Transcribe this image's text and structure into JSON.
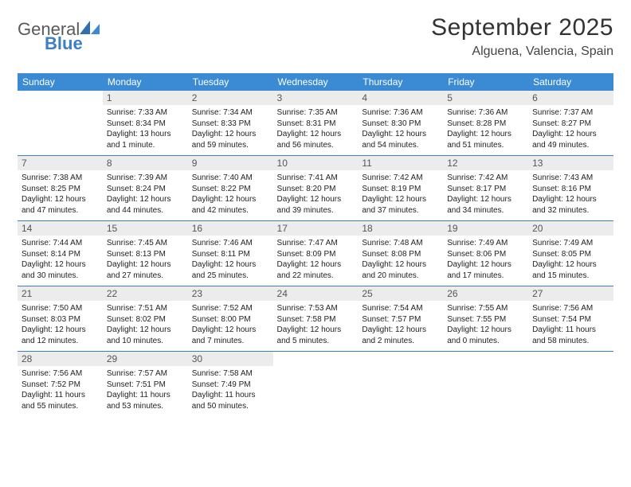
{
  "logo": {
    "text1": "General",
    "text2": "Blue"
  },
  "title": "September 2025",
  "location": "Alguena, Valencia, Spain",
  "colors": {
    "header_bg": "#3b8bd4",
    "header_text": "#ffffff",
    "daynum_bg": "#ececec",
    "daynum_text": "#555555",
    "row_divider": "#3b7fc4",
    "body_text": "#222222",
    "title_text": "#333333",
    "logo_gray": "#5a5a5a",
    "logo_blue": "#3b7fc4",
    "page_bg": "#ffffff"
  },
  "fonts": {
    "title_pt": 30,
    "location_pt": 16,
    "header_pt": 12,
    "daynum_pt": 12,
    "body_pt": 10,
    "logo_pt": 22
  },
  "dayNames": [
    "Sunday",
    "Monday",
    "Tuesday",
    "Wednesday",
    "Thursday",
    "Friday",
    "Saturday"
  ],
  "weeks": [
    [
      null,
      {
        "n": "1",
        "sr": "Sunrise: 7:33 AM",
        "ss": "Sunset: 8:34 PM",
        "dl1": "Daylight: 13 hours",
        "dl2": "and 1 minute."
      },
      {
        "n": "2",
        "sr": "Sunrise: 7:34 AM",
        "ss": "Sunset: 8:33 PM",
        "dl1": "Daylight: 12 hours",
        "dl2": "and 59 minutes."
      },
      {
        "n": "3",
        "sr": "Sunrise: 7:35 AM",
        "ss": "Sunset: 8:31 PM",
        "dl1": "Daylight: 12 hours",
        "dl2": "and 56 minutes."
      },
      {
        "n": "4",
        "sr": "Sunrise: 7:36 AM",
        "ss": "Sunset: 8:30 PM",
        "dl1": "Daylight: 12 hours",
        "dl2": "and 54 minutes."
      },
      {
        "n": "5",
        "sr": "Sunrise: 7:36 AM",
        "ss": "Sunset: 8:28 PM",
        "dl1": "Daylight: 12 hours",
        "dl2": "and 51 minutes."
      },
      {
        "n": "6",
        "sr": "Sunrise: 7:37 AM",
        "ss": "Sunset: 8:27 PM",
        "dl1": "Daylight: 12 hours",
        "dl2": "and 49 minutes."
      }
    ],
    [
      {
        "n": "7",
        "sr": "Sunrise: 7:38 AM",
        "ss": "Sunset: 8:25 PM",
        "dl1": "Daylight: 12 hours",
        "dl2": "and 47 minutes."
      },
      {
        "n": "8",
        "sr": "Sunrise: 7:39 AM",
        "ss": "Sunset: 8:24 PM",
        "dl1": "Daylight: 12 hours",
        "dl2": "and 44 minutes."
      },
      {
        "n": "9",
        "sr": "Sunrise: 7:40 AM",
        "ss": "Sunset: 8:22 PM",
        "dl1": "Daylight: 12 hours",
        "dl2": "and 42 minutes."
      },
      {
        "n": "10",
        "sr": "Sunrise: 7:41 AM",
        "ss": "Sunset: 8:20 PM",
        "dl1": "Daylight: 12 hours",
        "dl2": "and 39 minutes."
      },
      {
        "n": "11",
        "sr": "Sunrise: 7:42 AM",
        "ss": "Sunset: 8:19 PM",
        "dl1": "Daylight: 12 hours",
        "dl2": "and 37 minutes."
      },
      {
        "n": "12",
        "sr": "Sunrise: 7:42 AM",
        "ss": "Sunset: 8:17 PM",
        "dl1": "Daylight: 12 hours",
        "dl2": "and 34 minutes."
      },
      {
        "n": "13",
        "sr": "Sunrise: 7:43 AM",
        "ss": "Sunset: 8:16 PM",
        "dl1": "Daylight: 12 hours",
        "dl2": "and 32 minutes."
      }
    ],
    [
      {
        "n": "14",
        "sr": "Sunrise: 7:44 AM",
        "ss": "Sunset: 8:14 PM",
        "dl1": "Daylight: 12 hours",
        "dl2": "and 30 minutes."
      },
      {
        "n": "15",
        "sr": "Sunrise: 7:45 AM",
        "ss": "Sunset: 8:13 PM",
        "dl1": "Daylight: 12 hours",
        "dl2": "and 27 minutes."
      },
      {
        "n": "16",
        "sr": "Sunrise: 7:46 AM",
        "ss": "Sunset: 8:11 PM",
        "dl1": "Daylight: 12 hours",
        "dl2": "and 25 minutes."
      },
      {
        "n": "17",
        "sr": "Sunrise: 7:47 AM",
        "ss": "Sunset: 8:09 PM",
        "dl1": "Daylight: 12 hours",
        "dl2": "and 22 minutes."
      },
      {
        "n": "18",
        "sr": "Sunrise: 7:48 AM",
        "ss": "Sunset: 8:08 PM",
        "dl1": "Daylight: 12 hours",
        "dl2": "and 20 minutes."
      },
      {
        "n": "19",
        "sr": "Sunrise: 7:49 AM",
        "ss": "Sunset: 8:06 PM",
        "dl1": "Daylight: 12 hours",
        "dl2": "and 17 minutes."
      },
      {
        "n": "20",
        "sr": "Sunrise: 7:49 AM",
        "ss": "Sunset: 8:05 PM",
        "dl1": "Daylight: 12 hours",
        "dl2": "and 15 minutes."
      }
    ],
    [
      {
        "n": "21",
        "sr": "Sunrise: 7:50 AM",
        "ss": "Sunset: 8:03 PM",
        "dl1": "Daylight: 12 hours",
        "dl2": "and 12 minutes."
      },
      {
        "n": "22",
        "sr": "Sunrise: 7:51 AM",
        "ss": "Sunset: 8:02 PM",
        "dl1": "Daylight: 12 hours",
        "dl2": "and 10 minutes."
      },
      {
        "n": "23",
        "sr": "Sunrise: 7:52 AM",
        "ss": "Sunset: 8:00 PM",
        "dl1": "Daylight: 12 hours",
        "dl2": "and 7 minutes."
      },
      {
        "n": "24",
        "sr": "Sunrise: 7:53 AM",
        "ss": "Sunset: 7:58 PM",
        "dl1": "Daylight: 12 hours",
        "dl2": "and 5 minutes."
      },
      {
        "n": "25",
        "sr": "Sunrise: 7:54 AM",
        "ss": "Sunset: 7:57 PM",
        "dl1": "Daylight: 12 hours",
        "dl2": "and 2 minutes."
      },
      {
        "n": "26",
        "sr": "Sunrise: 7:55 AM",
        "ss": "Sunset: 7:55 PM",
        "dl1": "Daylight: 12 hours",
        "dl2": "and 0 minutes."
      },
      {
        "n": "27",
        "sr": "Sunrise: 7:56 AM",
        "ss": "Sunset: 7:54 PM",
        "dl1": "Daylight: 11 hours",
        "dl2": "and 58 minutes."
      }
    ],
    [
      {
        "n": "28",
        "sr": "Sunrise: 7:56 AM",
        "ss": "Sunset: 7:52 PM",
        "dl1": "Daylight: 11 hours",
        "dl2": "and 55 minutes."
      },
      {
        "n": "29",
        "sr": "Sunrise: 7:57 AM",
        "ss": "Sunset: 7:51 PM",
        "dl1": "Daylight: 11 hours",
        "dl2": "and 53 minutes."
      },
      {
        "n": "30",
        "sr": "Sunrise: 7:58 AM",
        "ss": "Sunset: 7:49 PM",
        "dl1": "Daylight: 11 hours",
        "dl2": "and 50 minutes."
      },
      null,
      null,
      null,
      null
    ]
  ]
}
